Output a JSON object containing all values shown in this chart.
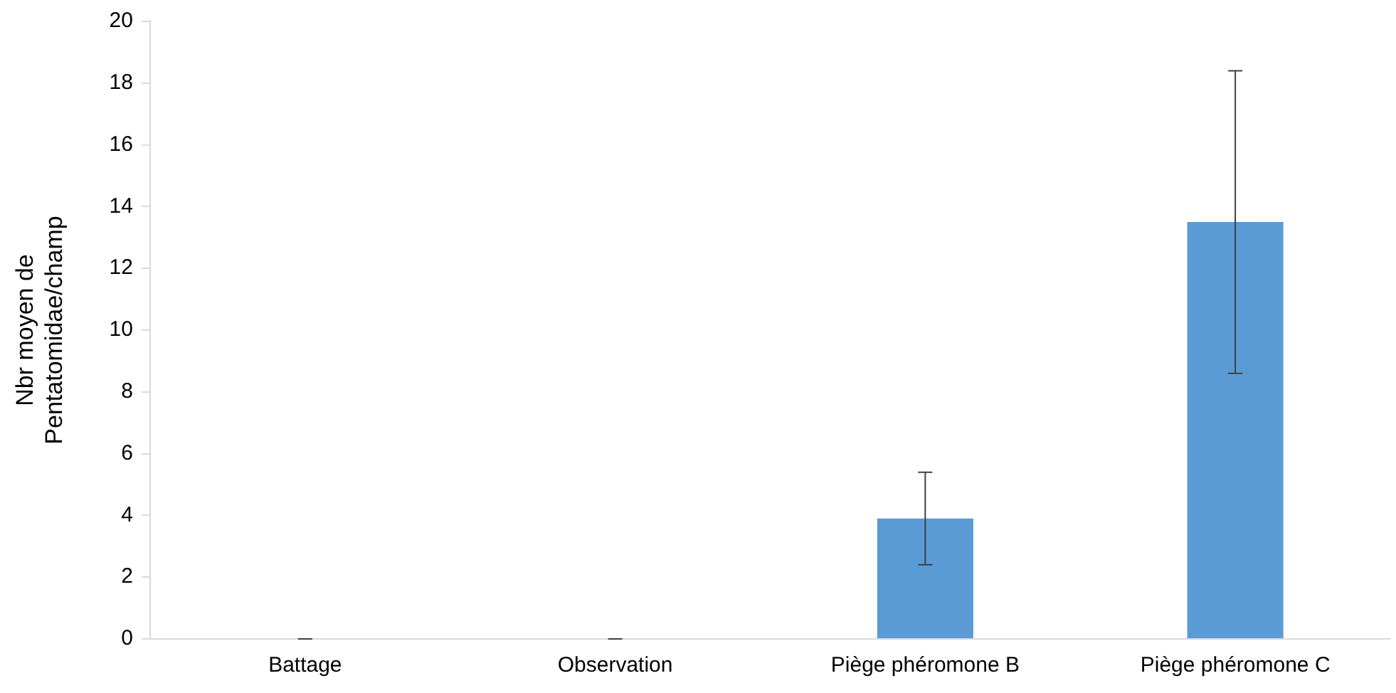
{
  "chart_data": {
    "type": "bar",
    "ylabel": "Nbr moyen de Pentatomidae/champ",
    "categories": [
      "Battage",
      "Observation",
      "Piège phéromone B",
      "Piège phéromone C"
    ],
    "values": [
      0,
      0,
      3.9,
      13.5
    ],
    "errors": [
      0,
      0,
      1.5,
      4.9
    ],
    "color": "#5b9bd5",
    "ylim": [
      0,
      20
    ],
    "yticks": [
      0,
      2,
      4,
      6,
      8,
      10,
      12,
      14,
      16,
      18,
      20
    ],
    "grid": false,
    "legend": false
  }
}
